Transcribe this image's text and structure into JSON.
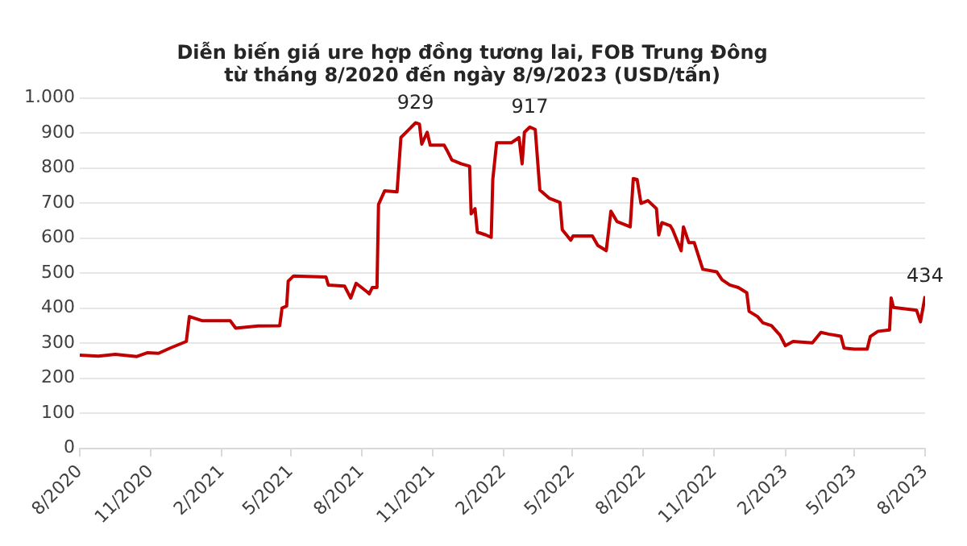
{
  "chart_data": {
    "type": "line",
    "title": "Diễn biến giá ure hợp đồng tương lai, FOB Trung Đông\ntừ tháng 8/2020 đến ngày 8/9/2023 (USD/tấn)",
    "x": [
      "2020-08-01",
      "2020-08-25",
      "2020-09-16",
      "2020-10-14",
      "2020-10-28",
      "2020-11-11",
      "2020-11-26",
      "2020-12-17",
      "2020-12-21",
      "2021-01-07",
      "2021-02-12",
      "2021-02-19",
      "2021-03-20",
      "2021-04-17",
      "2021-04-20",
      "2021-04-26",
      "2021-04-28",
      "2021-05-05",
      "2021-06-16",
      "2021-06-19",
      "2021-07-10",
      "2021-07-18",
      "2021-07-25",
      "2021-08-08",
      "2021-08-11",
      "2021-08-15",
      "2021-08-21",
      "2021-08-23",
      "2021-08-31",
      "2021-09-16",
      "2021-09-21",
      "2021-09-30",
      "2021-10-10",
      "2021-10-15",
      "2021-10-18",
      "2021-10-25",
      "2021-10-29",
      "2021-11-16",
      "2021-11-21",
      "2021-11-26",
      "2021-12-08",
      "2021-12-19",
      "2021-12-21",
      "2021-12-26",
      "2021-12-29",
      "2022-01-09",
      "2022-01-16",
      "2022-01-18",
      "2022-01-23",
      "2022-02-11",
      "2022-02-21",
      "2022-02-25",
      "2022-02-28",
      "2022-03-07",
      "2022-03-14",
      "2022-03-20",
      "2022-04-01",
      "2022-04-15",
      "2022-04-18",
      "2022-04-29",
      "2022-05-02",
      "2022-05-27",
      "2022-06-03",
      "2022-06-14",
      "2022-06-20",
      "2022-06-28",
      "2022-07-15",
      "2022-07-19",
      "2022-07-24",
      "2022-07-29",
      "2022-08-07",
      "2022-08-18",
      "2022-08-21",
      "2022-08-25",
      "2022-09-05",
      "2022-09-08",
      "2022-09-19",
      "2022-09-22",
      "2022-09-29",
      "2022-10-06",
      "2022-10-17",
      "2022-11-04",
      "2022-11-11",
      "2022-11-21",
      "2022-12-02",
      "2022-12-13",
      "2022-12-16",
      "2022-12-27",
      "2023-01-03",
      "2023-01-14",
      "2023-01-25",
      "2023-02-01",
      "2023-02-11",
      "2023-03-08",
      "2023-03-19",
      "2023-03-29",
      "2023-04-14",
      "2023-04-18",
      "2023-05-01",
      "2023-05-18",
      "2023-05-22",
      "2023-06-01",
      "2023-06-16",
      "2023-06-18",
      "2023-06-21",
      "2023-07-21",
      "2023-07-26",
      "2023-08-01"
    ],
    "series": [
      {
        "color": "#c00000",
        "values": [
          266,
          263,
          268,
          262,
          273,
          271,
          286,
          305,
          376,
          364,
          364,
          343,
          349,
          350,
          400,
          406,
          477,
          492,
          489,
          466,
          463,
          429,
          471,
          447,
          441,
          459,
          459,
          696,
          735,
          732,
          887,
          907,
          929,
          925,
          868,
          902,
          865,
          865,
          845,
          823,
          812,
          805,
          669,
          684,
          617,
          609,
          602,
          767,
          872,
          872,
          887,
          812,
          902,
          917,
          910,
          737,
          714,
          702,
          624,
          594,
          606,
          606,
          579,
          564,
          677,
          647,
          632,
          770,
          767,
          699,
          707,
          684,
          609,
          644,
          635,
          624,
          564,
          632,
          587,
          587,
          511,
          504,
          481,
          466,
          459,
          444,
          391,
          376,
          358,
          350,
          323,
          293,
          305,
          301,
          331,
          326,
          320,
          286,
          283,
          283,
          319,
          334,
          338,
          429,
          402,
          394,
          361,
          434
        ]
      }
    ],
    "xlim": [
      "2020-08-01",
      "2023-08-01"
    ],
    "xticks": [
      {
        "value": "2020-08-01",
        "label": "8/2020"
      },
      {
        "value": "2020-11-01",
        "label": "11/2020"
      },
      {
        "value": "2021-02-01",
        "label": "2/2021"
      },
      {
        "value": "2021-05-01",
        "label": "5/2021"
      },
      {
        "value": "2021-08-01",
        "label": "8/2021"
      },
      {
        "value": "2021-11-01",
        "label": "11/2021"
      },
      {
        "value": "2022-02-01",
        "label": "2/2022"
      },
      {
        "value": "2022-05-01",
        "label": "5/2022"
      },
      {
        "value": "2022-08-01",
        "label": "8/2022"
      },
      {
        "value": "2022-11-01",
        "label": "11/2022"
      },
      {
        "value": "2023-02-01",
        "label": "2/2023"
      },
      {
        "value": "2023-05-01",
        "label": "5/2023"
      },
      {
        "value": "2023-08-01",
        "label": "8/2023"
      }
    ],
    "ylim": [
      0,
      1000
    ],
    "yticks": [
      0,
      100,
      200,
      300,
      400,
      500,
      600,
      700,
      800,
      900,
      {
        "value": 1000,
        "label": "1.000"
      }
    ],
    "grid": "y",
    "marker": "none",
    "line_style": "solid",
    "legend": false,
    "annotations": [
      {
        "text": "929",
        "x": "2021-10-10",
        "y": 929
      },
      {
        "text": "917",
        "x": "2022-03-07",
        "y": 917
      },
      {
        "text": "434",
        "x": "2023-08-01",
        "y": 434
      }
    ]
  }
}
